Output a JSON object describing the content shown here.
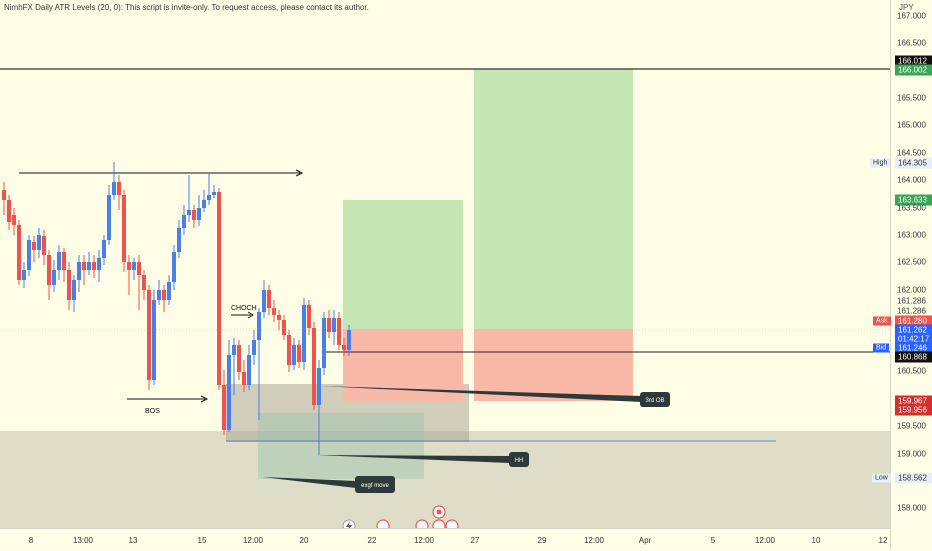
{
  "header": {
    "indicator_text": "NimhFX Daily ATR Levels (20, 0): This script is invite-only. To request access, please contact its author."
  },
  "price_axis": {
    "currency": "JPY",
    "labels": [
      "167.000",
      "166.500",
      "165.500",
      "165.000",
      "164.500",
      "164.000",
      "163.500",
      "163.000",
      "162.500",
      "162.000",
      "161.286",
      "161.286",
      "160.500",
      "160.000",
      "159.500",
      "159.000",
      "158.562",
      "158.000"
    ],
    "tags": {
      "top_line": "166.012",
      "top_target": "166.002",
      "high": "164.305",
      "green_tag": "163.633",
      "ask": "161.280",
      "current": "161.262",
      "countdown": "01:42:17",
      "bid": "161.246",
      "black_tag": "160.868",
      "red_a": "159.967",
      "red_b": "159.956",
      "low": "158.562"
    },
    "side_labels": {
      "high": "High",
      "ask": "Ask",
      "bid": "Bid",
      "low": "Low"
    }
  },
  "time_axis": {
    "labels": [
      "8",
      "13:00",
      "13",
      "15",
      "12:00",
      "20",
      "22",
      "12:00",
      "27",
      "29",
      "12:00",
      "Apr",
      "5",
      "12:00",
      "10",
      "12"
    ]
  },
  "annotations": {
    "bos": "BOS",
    "choch": "CHOCH",
    "callouts": [
      "3rd OB",
      "HH",
      "exgf move"
    ]
  },
  "colors": {
    "up": "#4a7ee8",
    "down": "#ef5350",
    "profit_zone": "#c6e6b4",
    "loss_zone": "#f8b9a8",
    "gray_zone": "#b9b6a2",
    "background": "#fefde6"
  },
  "event_icons": [
    "lightning-icon",
    "red-flag-icon",
    "red-flag-icon",
    "red-flag-icon",
    "red-flag-icon",
    "red-flag-icon"
  ]
}
